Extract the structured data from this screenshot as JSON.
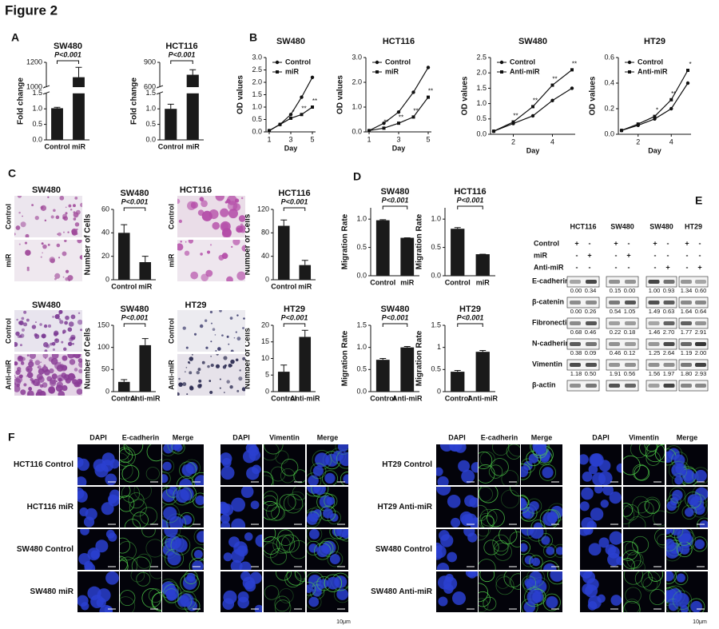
{
  "title": "Figure 2",
  "panel_labels": [
    "A",
    "B",
    "C",
    "D",
    "E",
    "F"
  ],
  "chart_data": [
    {
      "type": "bar",
      "title": "SW480",
      "ylabel": "Fold change",
      "categories": [
        "Control",
        "miR"
      ],
      "values": [
        1.02,
        1080
      ],
      "errors": [
        0.03,
        80
      ],
      "color": "#1a1a1a",
      "ylim": [
        0,
        1200
      ],
      "ybreak": [
        1.5,
        1000
      ],
      "yticks": [
        {
          "value": 0,
          "label": "0.0"
        },
        0.5,
        {
          "value": 1,
          "label": "1.0"
        },
        1.5,
        1000,
        1200
      ],
      "annotation": "P<0.001"
    },
    {
      "type": "bar",
      "title": "HCT116",
      "ylabel": "Fold change",
      "categories": [
        "Control",
        "miR"
      ],
      "values": [
        1.0,
        750
      ],
      "errors": [
        0.15,
        60
      ],
      "color": "#1a1a1a",
      "ylim": [
        0,
        900
      ],
      "ybreak": [
        1.5,
        600
      ],
      "yticks": [
        {
          "value": 0,
          "label": "0.0"
        },
        0.5,
        {
          "value": 1,
          "label": "1.0"
        },
        1.5,
        600,
        900
      ],
      "annotation": "P<0.001"
    },
    {
      "type": "line",
      "title": "SW480",
      "ylabel": "OD values",
      "xlabel": "Day",
      "x": [
        1,
        2,
        3,
        4,
        5
      ],
      "xlim": [
        1,
        5
      ],
      "xticks": [
        1,
        3,
        5
      ],
      "ylim": [
        0,
        3
      ],
      "yticks": [
        {
          "value": 0,
          "label": "0.0"
        },
        0.5,
        {
          "value": 1,
          "label": "1.0"
        },
        1.5,
        {
          "value": 2,
          "label": "2.0"
        },
        2.5,
        {
          "value": 3,
          "label": "3.0"
        }
      ],
      "series": [
        {
          "name": "Control",
          "color": "#111",
          "marker": "circle",
          "values": [
            0.05,
            0.3,
            0.7,
            1.4,
            2.2
          ]
        },
        {
          "name": "miR",
          "color": "#111",
          "marker": "square",
          "values": [
            0.05,
            0.3,
            0.55,
            0.7,
            1.0
          ],
          "annotations": [
            null,
            null,
            "*",
            "**",
            "**"
          ]
        }
      ]
    },
    {
      "type": "line",
      "title": "HCT116",
      "ylabel": "OD values",
      "xlabel": "Day",
      "x": [
        1,
        2,
        3,
        4,
        5
      ],
      "xlim": [
        1,
        5
      ],
      "xticks": [
        1,
        3,
        5
      ],
      "ylim": [
        0,
        3
      ],
      "yticks": [
        {
          "value": 0,
          "label": "0.0"
        },
        {
          "value": 1,
          "label": "1.0"
        },
        {
          "value": 2,
          "label": "2.0"
        },
        {
          "value": 3,
          "label": "3.0"
        }
      ],
      "series": [
        {
          "name": "Control",
          "color": "#111",
          "marker": "circle",
          "values": [
            0.05,
            0.35,
            0.8,
            1.6,
            2.6
          ]
        },
        {
          "name": "miR",
          "color": "#111",
          "marker": "square",
          "values": [
            0.05,
            0.15,
            0.35,
            0.6,
            1.4
          ],
          "annotations": [
            null,
            "**",
            "**",
            "**",
            "**"
          ]
        }
      ]
    },
    {
      "type": "line",
      "title": "SW480",
      "ylabel": "OD values",
      "xlabel": "Day",
      "x": [
        1,
        2,
        3,
        4,
        5
      ],
      "xlim": [
        1,
        5
      ],
      "xticks": [
        2,
        4
      ],
      "ylim": [
        0,
        2.5
      ],
      "yticks": [
        {
          "value": 0,
          "label": "0.0"
        },
        0.5,
        {
          "value": 1,
          "label": "1.0"
        },
        1.5,
        {
          "value": 2,
          "label": "2.0"
        },
        2.5
      ],
      "series": [
        {
          "name": "Control",
          "color": "#111",
          "marker": "circle",
          "values": [
            0.1,
            0.35,
            0.6,
            1.1,
            1.5
          ]
        },
        {
          "name": "Anti-miR",
          "color": "#111",
          "marker": "square",
          "values": [
            0.1,
            0.4,
            0.9,
            1.6,
            2.1
          ],
          "annotations": [
            null,
            "**",
            "**",
            "**",
            "**"
          ]
        }
      ]
    },
    {
      "type": "line",
      "title": "HT29",
      "ylabel": "OD values",
      "xlabel": "Day",
      "x": [
        1,
        2,
        3,
        4,
        5
      ],
      "xlim": [
        1,
        5
      ],
      "xticks": [
        2,
        4
      ],
      "ylim": [
        0,
        0.6
      ],
      "yticks": [
        {
          "value": 0,
          "label": "0.0"
        },
        0.2,
        0.4,
        0.6
      ],
      "series": [
        {
          "name": "Control",
          "color": "#111",
          "marker": "circle",
          "values": [
            0.03,
            0.07,
            0.12,
            0.2,
            0.4
          ]
        },
        {
          "name": "Anti-miR",
          "color": "#111",
          "marker": "square",
          "values": [
            0.03,
            0.08,
            0.14,
            0.27,
            0.5
          ],
          "annotations": [
            null,
            null,
            "*",
            "**",
            "*"
          ]
        }
      ]
    },
    {
      "type": "bar",
      "title": "SW480",
      "ylabel": "Number of Cells",
      "categories": [
        "Control",
        "miR"
      ],
      "values": [
        40,
        15
      ],
      "errors": [
        7,
        5
      ],
      "color": "#1a1a1a",
      "ylim": [
        0,
        60
      ],
      "yticks": [
        0,
        20,
        40,
        60
      ],
      "annotation": "P<0.001"
    },
    {
      "type": "bar",
      "title": "HCT116",
      "ylabel": "Number of Cells",
      "categories": [
        "Control",
        "miR"
      ],
      "values": [
        92,
        25
      ],
      "errors": [
        10,
        8
      ],
      "color": "#1a1a1a",
      "ylim": [
        0,
        120
      ],
      "yticks": [
        0,
        40,
        80,
        120
      ],
      "annotation": "P<0.001"
    },
    {
      "type": "bar",
      "title": "SW480",
      "ylabel": "Number of Cells",
      "categories": [
        "Control",
        "Anti-miR"
      ],
      "values": [
        22,
        105
      ],
      "errors": [
        5,
        15
      ],
      "color": "#1a1a1a",
      "ylim": [
        0,
        150
      ],
      "yticks": [
        0,
        50,
        100,
        150
      ],
      "annotation": "P<0.001"
    },
    {
      "type": "bar",
      "title": "HT29",
      "ylabel": "Number of Cells",
      "categories": [
        "Control",
        "Anti-miR"
      ],
      "values": [
        6,
        16.5
      ],
      "errors": [
        2,
        2
      ],
      "color": "#1a1a1a",
      "ylim": [
        0,
        20
      ],
      "yticks": [
        0,
        5,
        10,
        15,
        20
      ],
      "annotation": "P<0.001"
    },
    {
      "type": "bar",
      "title": "SW480",
      "ylabel": "Migration Rate",
      "categories": [
        "Control",
        "miR"
      ],
      "values": [
        0.98,
        0.67
      ],
      "errors": [
        0.01,
        0
      ],
      "color": "#1a1a1a",
      "ylim": [
        0,
        1.2
      ],
      "yticks": [
        {
          "value": 0,
          "label": "0.0"
        },
        0.5,
        {
          "value": 1,
          "label": "1.0"
        }
      ],
      "annotation": "P<0.001"
    },
    {
      "type": "bar",
      "title": "HCT116",
      "ylabel": "Migration Rate",
      "categories": [
        "Control",
        "miR"
      ],
      "values": [
        0.83,
        0.38
      ],
      "errors": [
        0.02,
        0
      ],
      "color": "#1a1a1a",
      "ylim": [
        0,
        1.2
      ],
      "yticks": [
        {
          "value": 0,
          "label": "0.0"
        },
        0.5,
        {
          "value": 1,
          "label": "1.0"
        }
      ],
      "annotation": "P<0.001"
    },
    {
      "type": "bar",
      "title": "SW480",
      "ylabel": "Migration Rate",
      "categories": [
        "Control",
        "Anti-miR"
      ],
      "values": [
        0.72,
        1.0
      ],
      "errors": [
        0.03,
        0.02
      ],
      "color": "#1a1a1a",
      "ylim": [
        0,
        1.5
      ],
      "yticks": [
        {
          "value": 0,
          "label": "0.0"
        },
        0.5,
        {
          "value": 1,
          "label": "1.0"
        },
        1.5
      ],
      "annotation": "P<0.001"
    },
    {
      "type": "bar",
      "title": "HT29",
      "ylabel": "Migration Rate",
      "categories": [
        "Control",
        "Anti-miR"
      ],
      "values": [
        0.45,
        0.9
      ],
      "errors": [
        0.03,
        0.03
      ],
      "color": "#1a1a1a",
      "ylim": [
        0,
        1.5
      ],
      "yticks": [
        0,
        0.5,
        1,
        1.5
      ],
      "annotation": "P<0.001"
    }
  ],
  "micrographs": [
    {
      "title": "SW480",
      "rows": [
        "Control",
        "miR"
      ]
    },
    {
      "title": "HCT116",
      "rows": [
        "Control",
        "miR"
      ]
    },
    {
      "title": "SW480",
      "rows": [
        "Control",
        "Anti-miR"
      ]
    },
    {
      "title": "HT29",
      "rows": [
        "Control",
        "Anti-miR"
      ]
    }
  ],
  "blot": {
    "cell_lines": [
      "HCT116",
      "SW480",
      "SW480",
      "HT29"
    ],
    "treatments": [
      "Control",
      "miR",
      "Anti-miR"
    ],
    "signs": [
      [
        "+",
        "-",
        "+",
        "-",
        "+",
        "-",
        "+",
        "-"
      ],
      [
        "-",
        "+",
        "-",
        "+",
        "-",
        "-",
        "-",
        "-"
      ],
      [
        "-",
        "-",
        "-",
        "-",
        "-",
        "+",
        "-",
        "+"
      ]
    ],
    "proteins": [
      {
        "name": "E-cadherin",
        "values": [
          "0.00",
          "0.34",
          "0.15",
          "0.00",
          "1.00",
          "0.93",
          "1.34",
          "0.60"
        ]
      },
      {
        "name": "β-catenin",
        "values": [
          "0.00",
          "0.26",
          "0.54",
          "1.05",
          "1.49",
          "0.63",
          "1.64",
          "0.64"
        ]
      },
      {
        "name": "Fibronectin",
        "values": [
          "0.68",
          "0.46",
          "0.22",
          "0.18",
          "1.46",
          "2.70",
          "1.77",
          "2.91"
        ]
      },
      {
        "name": "N-cadherin",
        "values": [
          "0.38",
          "0.09",
          "0.46",
          "0.12",
          "1.25",
          "2.64",
          "1.19",
          "2.00"
        ]
      },
      {
        "name": "Vimentin",
        "values": [
          "1.18",
          "0.50",
          "1.91",
          "0.56",
          "1.56",
          "1.97",
          "1.80",
          "2.93"
        ]
      },
      {
        "name": "β-actin"
      }
    ]
  },
  "if_panel": {
    "left": {
      "rows": [
        "HCT116 Control",
        "HCT116 miR",
        "SW480 Control",
        "SW480 miR"
      ],
      "blocks": [
        [
          "DAPI",
          "E-cadherin",
          "Merge"
        ],
        [
          "DAPI",
          "Vimentin",
          "Merge"
        ]
      ]
    },
    "right": {
      "rows": [
        "HT29 Control",
        "HT29 Anti-miR",
        "SW480 Control",
        "SW480 Anti-miR"
      ],
      "blocks": [
        [
          "DAPI",
          "E-cadherin",
          "Merge"
        ],
        [
          "DAPI",
          "Vimentin",
          "Merge"
        ]
      ]
    },
    "scale_bar": "10μm"
  }
}
